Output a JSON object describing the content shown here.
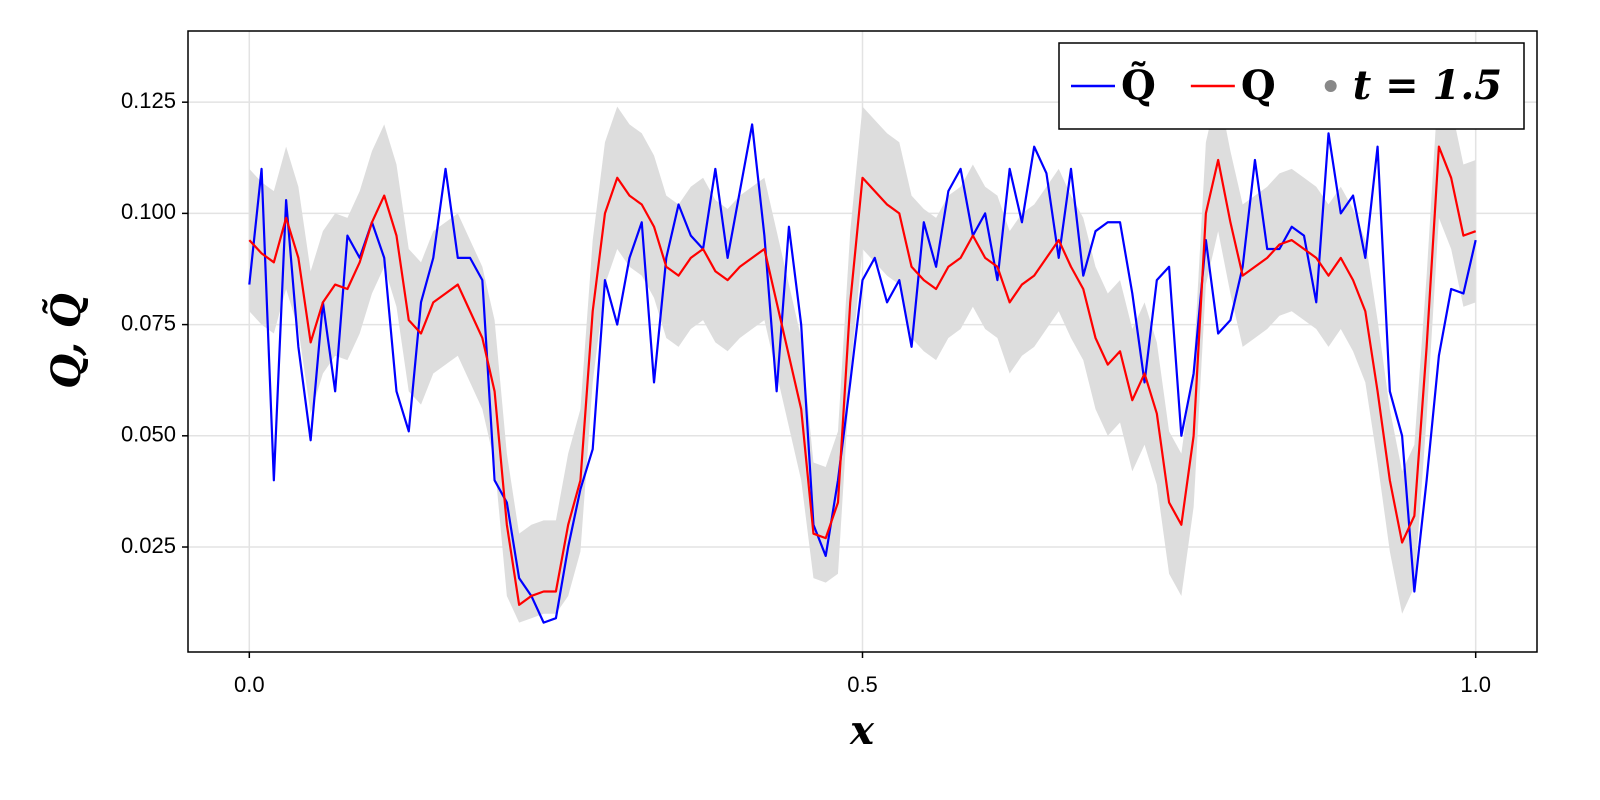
{
  "chart_data": {
    "type": "line",
    "xlabel": "x",
    "ylabel": "Q, Q̃",
    "xlim": [
      -0.05,
      1.05
    ],
    "ylim": [
      0.0014,
      0.141
    ],
    "xticks": [
      {
        "value": 0,
        "label": "0.0"
      },
      {
        "value": 0.5,
        "label": "0.5"
      },
      {
        "value": 1,
        "label": "1.0"
      }
    ],
    "yticks": [
      0.025,
      {
        "value": 0.05,
        "label": "0.050"
      },
      0.075,
      {
        "value": 0.1,
        "label": "0.100"
      },
      0.125
    ],
    "grid": true,
    "legend": "top-right",
    "legend_extra": {
      "label": "t = 1.5",
      "color": "#888888"
    },
    "x": [
      0,
      0.01,
      0.02,
      0.03,
      0.04,
      0.05,
      0.06,
      0.07,
      0.08,
      0.09,
      0.1,
      0.11,
      0.12,
      0.13,
      0.14,
      0.15,
      0.16,
      0.17,
      0.18,
      0.19,
      0.2,
      0.21,
      0.22,
      0.23,
      0.24,
      0.25,
      0.26,
      0.27,
      0.28,
      0.29,
      0.3,
      0.31,
      0.32,
      0.33,
      0.34,
      0.35,
      0.36,
      0.37,
      0.38,
      0.39,
      0.4,
      0.41,
      0.42,
      0.43,
      0.44,
      0.45,
      0.46,
      0.47,
      0.48,
      0.49,
      0.5,
      0.51,
      0.52,
      0.53,
      0.54,
      0.55,
      0.56,
      0.57,
      0.58,
      0.59,
      0.6,
      0.61,
      0.62,
      0.63,
      0.64,
      0.65,
      0.66,
      0.67,
      0.68,
      0.69,
      0.7,
      0.71,
      0.72,
      0.73,
      0.74,
      0.75,
      0.76,
      0.77,
      0.78,
      0.79,
      0.8,
      0.81,
      0.82,
      0.83,
      0.84,
      0.85,
      0.86,
      0.87,
      0.88,
      0.89,
      0.9,
      0.91,
      0.92,
      0.93,
      0.94,
      0.95,
      0.96,
      0.97,
      0.98,
      0.99,
      1
    ],
    "band": {
      "color": "#dddddd",
      "upper": [
        0.11,
        0.107,
        0.105,
        0.115,
        0.106,
        0.087,
        0.096,
        0.1,
        0.099,
        0.105,
        0.114,
        0.12,
        0.111,
        0.092,
        0.089,
        0.096,
        0.098,
        0.1,
        0.094,
        0.088,
        0.076,
        0.046,
        0.028,
        0.03,
        0.031,
        0.031,
        0.046,
        0.056,
        0.094,
        0.116,
        0.124,
        0.12,
        0.118,
        0.113,
        0.104,
        0.102,
        0.106,
        0.108,
        0.103,
        0.101,
        0.104,
        0.106,
        0.108,
        0.096,
        0.084,
        0.072,
        0.044,
        0.043,
        0.051,
        0.096,
        0.124,
        0.121,
        0.118,
        0.116,
        0.104,
        0.101,
        0.099,
        0.104,
        0.106,
        0.111,
        0.106,
        0.104,
        0.096,
        0.1,
        0.102,
        0.106,
        0.11,
        0.104,
        0.099,
        0.088,
        0.082,
        0.085,
        0.074,
        0.08,
        0.071,
        0.051,
        0.046,
        0.066,
        0.116,
        0.128,
        0.114,
        0.102,
        0.104,
        0.106,
        0.109,
        0.11,
        0.108,
        0.106,
        0.102,
        0.106,
        0.101,
        0.094,
        0.076,
        0.056,
        0.042,
        0.048,
        0.086,
        0.131,
        0.124,
        0.111,
        0.112
      ],
      "lower": [
        0.078,
        0.075,
        0.073,
        0.083,
        0.074,
        0.055,
        0.064,
        0.068,
        0.067,
        0.073,
        0.082,
        0.088,
        0.079,
        0.06,
        0.057,
        0.064,
        0.066,
        0.068,
        0.062,
        0.056,
        0.044,
        0.014,
        0.008,
        0.009,
        0.01,
        0.01,
        0.014,
        0.024,
        0.062,
        0.084,
        0.092,
        0.088,
        0.086,
        0.081,
        0.072,
        0.07,
        0.074,
        0.076,
        0.071,
        0.069,
        0.072,
        0.074,
        0.076,
        0.064,
        0.052,
        0.04,
        0.018,
        0.017,
        0.019,
        0.064,
        0.092,
        0.089,
        0.086,
        0.084,
        0.072,
        0.069,
        0.067,
        0.072,
        0.074,
        0.079,
        0.074,
        0.072,
        0.064,
        0.068,
        0.07,
        0.074,
        0.078,
        0.072,
        0.067,
        0.056,
        0.05,
        0.053,
        0.042,
        0.048,
        0.039,
        0.019,
        0.014,
        0.034,
        0.084,
        0.096,
        0.082,
        0.07,
        0.072,
        0.074,
        0.077,
        0.078,
        0.076,
        0.074,
        0.07,
        0.074,
        0.069,
        0.062,
        0.044,
        0.024,
        0.01,
        0.016,
        0.054,
        0.099,
        0.092,
        0.079,
        0.08
      ]
    },
    "series": [
      {
        "name": "Q̃",
        "color": "#0000ff",
        "values": [
          0.084,
          0.11,
          0.04,
          0.103,
          0.07,
          0.049,
          0.08,
          0.06,
          0.095,
          0.09,
          0.098,
          0.09,
          0.06,
          0.051,
          0.08,
          0.09,
          0.11,
          0.09,
          0.09,
          0.085,
          0.04,
          0.035,
          0.018,
          0.014,
          0.008,
          0.009,
          0.025,
          0.038,
          0.047,
          0.085,
          0.075,
          0.09,
          0.098,
          0.062,
          0.09,
          0.102,
          0.095,
          0.092,
          0.11,
          0.09,
          0.105,
          0.12,
          0.095,
          0.06,
          0.097,
          0.075,
          0.03,
          0.023,
          0.04,
          0.062,
          0.085,
          0.09,
          0.08,
          0.085,
          0.07,
          0.098,
          0.088,
          0.105,
          0.11,
          0.095,
          0.1,
          0.085,
          0.11,
          0.098,
          0.115,
          0.109,
          0.09,
          0.11,
          0.086,
          0.096,
          0.098,
          0.098,
          0.082,
          0.062,
          0.085,
          0.088,
          0.05,
          0.064,
          0.094,
          0.073,
          0.076,
          0.088,
          0.112,
          0.092,
          0.092,
          0.097,
          0.095,
          0.08,
          0.118,
          0.1,
          0.104,
          0.09,
          0.115,
          0.06,
          0.05,
          0.015,
          0.04,
          0.068,
          0.083,
          0.082,
          0.094
        ]
      },
      {
        "name": "Q",
        "color": "#ff0000",
        "values": [
          0.094,
          0.091,
          0.089,
          0.099,
          0.09,
          0.071,
          0.08,
          0.084,
          0.083,
          0.089,
          0.098,
          0.104,
          0.095,
          0.076,
          0.073,
          0.08,
          0.082,
          0.084,
          0.078,
          0.072,
          0.06,
          0.03,
          0.012,
          0.014,
          0.015,
          0.015,
          0.03,
          0.04,
          0.078,
          0.1,
          0.108,
          0.104,
          0.102,
          0.097,
          0.088,
          0.086,
          0.09,
          0.092,
          0.087,
          0.085,
          0.088,
          0.09,
          0.092,
          0.08,
          0.068,
          0.056,
          0.028,
          0.027,
          0.035,
          0.08,
          0.108,
          0.105,
          0.102,
          0.1,
          0.088,
          0.085,
          0.083,
          0.088,
          0.09,
          0.095,
          0.09,
          0.088,
          0.08,
          0.084,
          0.086,
          0.09,
          0.094,
          0.088,
          0.083,
          0.072,
          0.066,
          0.069,
          0.058,
          0.064,
          0.055,
          0.035,
          0.03,
          0.05,
          0.1,
          0.112,
          0.098,
          0.086,
          0.088,
          0.09,
          0.093,
          0.094,
          0.092,
          0.09,
          0.086,
          0.09,
          0.085,
          0.078,
          0.06,
          0.04,
          0.026,
          0.032,
          0.07,
          0.115,
          0.108,
          0.095,
          0.096
        ]
      }
    ]
  }
}
